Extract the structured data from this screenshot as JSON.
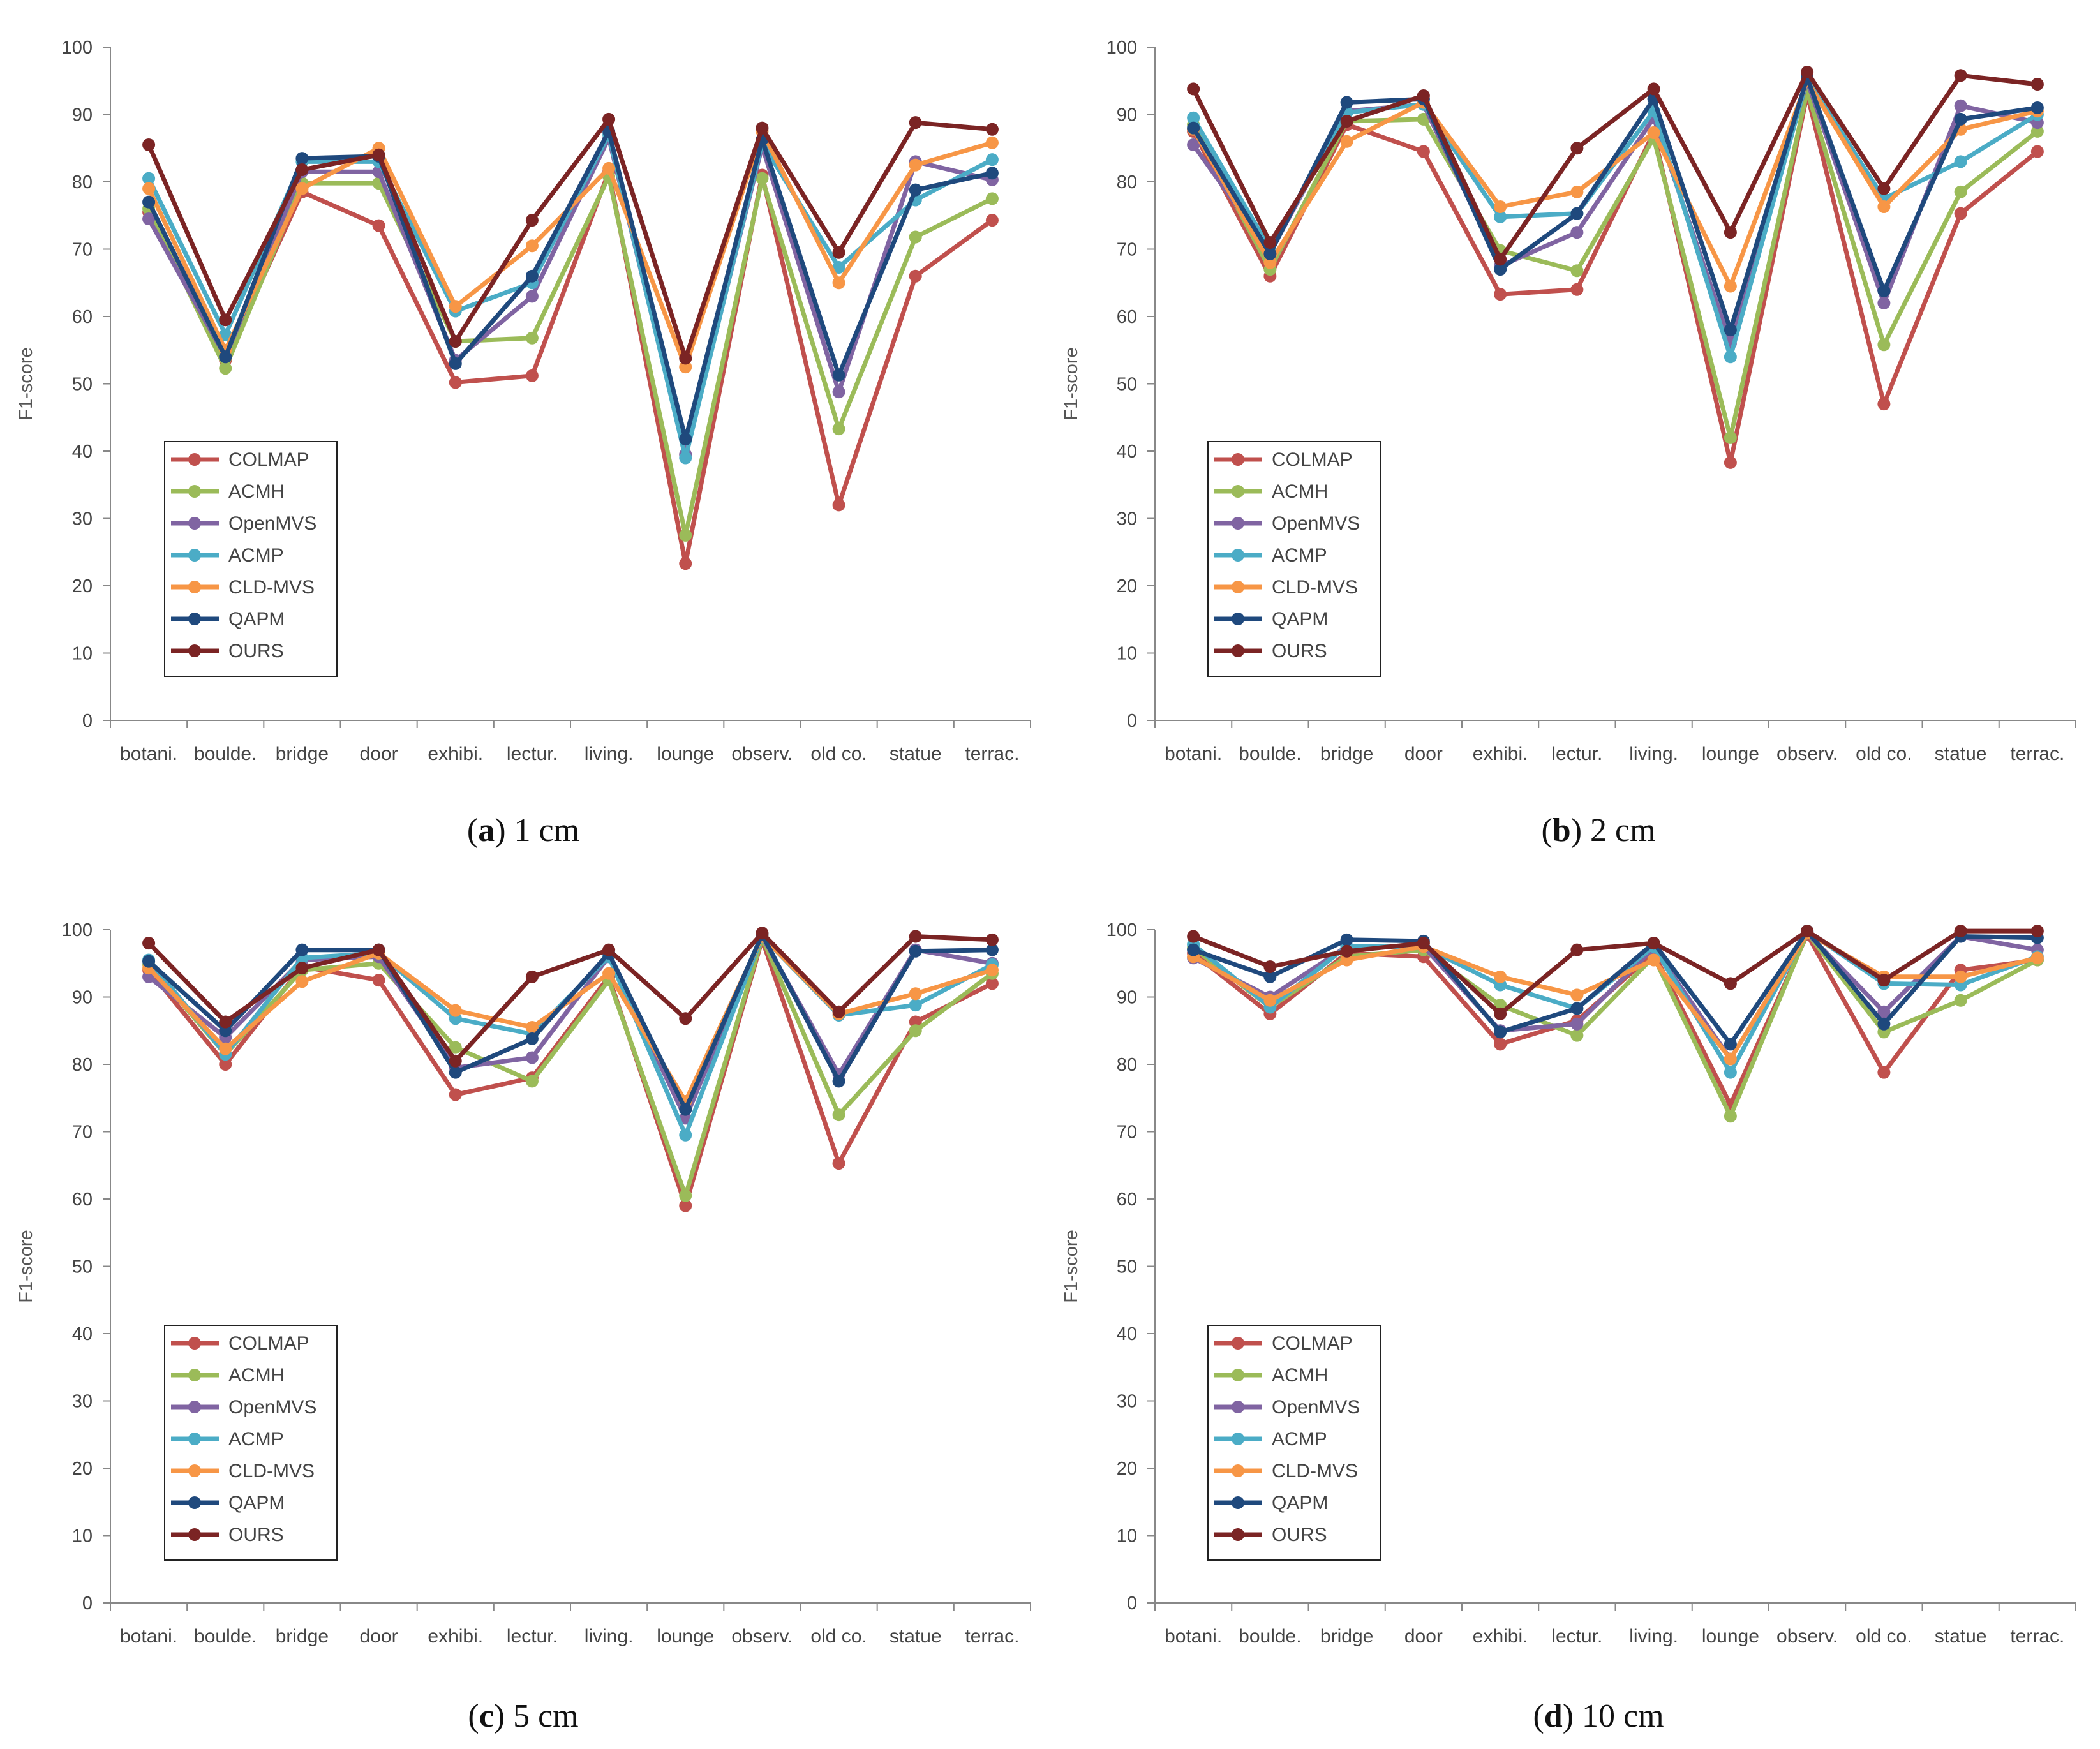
{
  "colors": {
    "COLMAP": "#C0504D",
    "ACMH": "#9BBB59",
    "OpenMVS": "#8064A2",
    "ACMP": "#4BACC6",
    "CLD-MVS": "#F79646",
    "QAPM": "#1F497D",
    "OURS": "#7B2424"
  },
  "chart_data": [
    {
      "type": "line",
      "label": "a",
      "caption": "1 cm",
      "ylabel": "F1-score",
      "ylim": [
        0,
        100
      ],
      "yticks": [
        0,
        10,
        20,
        30,
        40,
        50,
        60,
        70,
        80,
        90,
        100
      ],
      "categories": [
        "botani.",
        "boulde.",
        "bridge",
        "door",
        "exhibi.",
        "lectur.",
        "living.",
        "lounge",
        "observ.",
        "old co.",
        "statue",
        "terrac."
      ],
      "series": [
        {
          "name": "COLMAP",
          "values": [
            75.5,
            53.5,
            78.5,
            73.5,
            50.2,
            51.2,
            81.5,
            23.3,
            81.0,
            32.0,
            66.0,
            74.3
          ]
        },
        {
          "name": "ACMH",
          "values": [
            76.0,
            52.3,
            79.8,
            79.8,
            56.3,
            56.8,
            80.8,
            27.5,
            80.5,
            43.3,
            71.8,
            77.5
          ]
        },
        {
          "name": "OpenMVS",
          "values": [
            74.5,
            54.0,
            81.5,
            81.5,
            53.5,
            63.0,
            86.5,
            39.5,
            85.3,
            48.8,
            83.0,
            80.3
          ]
        },
        {
          "name": "ACMP",
          "values": [
            80.5,
            57.3,
            83.0,
            83.0,
            60.8,
            65.0,
            87.0,
            39.0,
            85.8,
            67.3,
            77.3,
            83.3
          ]
        },
        {
          "name": "CLD-MVS",
          "values": [
            79.0,
            55.0,
            79.0,
            85.0,
            61.5,
            70.5,
            82.0,
            52.5,
            87.5,
            65.0,
            82.5,
            85.8
          ]
        },
        {
          "name": "QAPM",
          "values": [
            77.0,
            54.0,
            83.5,
            83.8,
            53.0,
            66.0,
            87.5,
            41.8,
            86.3,
            51.3,
            78.8,
            81.3
          ]
        },
        {
          "name": "OURS",
          "values": [
            85.5,
            59.5,
            81.8,
            84.0,
            56.3,
            74.3,
            89.3,
            53.8,
            88.0,
            69.5,
            88.8,
            87.8
          ]
        }
      ]
    },
    {
      "type": "line",
      "label": "b",
      "caption": "2 cm",
      "ylabel": "F1-score",
      "ylim": [
        0,
        100
      ],
      "yticks": [
        0,
        10,
        20,
        30,
        40,
        50,
        60,
        70,
        80,
        90,
        100
      ],
      "categories": [
        "botani.",
        "boulde.",
        "bridge",
        "door",
        "exhibi.",
        "lectur.",
        "living.",
        "lounge",
        "observ.",
        "old co.",
        "statue",
        "terrac."
      ],
      "series": [
        {
          "name": "COLMAP",
          "values": [
            87.5,
            66.0,
            88.5,
            84.5,
            63.3,
            64.0,
            87.3,
            38.3,
            93.0,
            47.0,
            75.3,
            84.5
          ]
        },
        {
          "name": "ACMH",
          "values": [
            88.5,
            67.0,
            89.0,
            89.3,
            69.8,
            66.8,
            86.5,
            42.0,
            93.5,
            55.8,
            78.5,
            87.5
          ]
        },
        {
          "name": "OpenMVS",
          "values": [
            85.5,
            69.5,
            90.5,
            91.5,
            67.5,
            72.5,
            89.5,
            56.0,
            95.0,
            62.0,
            91.3,
            88.8
          ]
        },
        {
          "name": "ACMP",
          "values": [
            89.5,
            70.0,
            90.3,
            91.5,
            74.8,
            75.3,
            90.5,
            54.0,
            95.3,
            77.5,
            83.0,
            90.0
          ]
        },
        {
          "name": "CLD-MVS",
          "values": [
            87.8,
            68.0,
            86.0,
            91.8,
            76.3,
            78.5,
            87.3,
            64.5,
            95.0,
            76.3,
            87.8,
            90.5
          ]
        },
        {
          "name": "QAPM",
          "values": [
            88.0,
            69.3,
            91.8,
            92.3,
            67.0,
            75.3,
            92.3,
            58.0,
            95.5,
            63.8,
            89.3,
            91.0
          ]
        },
        {
          "name": "OURS",
          "values": [
            93.8,
            71.0,
            89.0,
            92.8,
            68.5,
            85.0,
            93.8,
            72.5,
            96.3,
            79.0,
            95.8,
            94.5
          ]
        }
      ]
    },
    {
      "type": "line",
      "label": "c",
      "caption": "5 cm",
      "ylabel": "F1-score",
      "ylim": [
        0,
        100
      ],
      "yticks": [
        0,
        10,
        20,
        30,
        40,
        50,
        60,
        70,
        80,
        90,
        100
      ],
      "categories": [
        "botani.",
        "boulde.",
        "bridge",
        "door",
        "exhibi.",
        "lectur.",
        "living.",
        "lounge",
        "observ.",
        "old co.",
        "statue",
        "terrac."
      ],
      "series": [
        {
          "name": "COLMAP",
          "values": [
            94.0,
            80.0,
            94.5,
            92.5,
            75.5,
            78.0,
            93.0,
            59.0,
            98.5,
            65.3,
            86.3,
            92.0
          ]
        },
        {
          "name": "ACMH",
          "values": [
            94.8,
            81.5,
            94.0,
            95.0,
            82.5,
            77.5,
            92.5,
            60.5,
            98.8,
            72.5,
            85.0,
            93.5
          ]
        },
        {
          "name": "OpenMVS",
          "values": [
            93.0,
            84.0,
            95.5,
            96.0,
            79.5,
            81.0,
            96.0,
            72.0,
            99.0,
            78.5,
            97.0,
            95.0
          ]
        },
        {
          "name": "ACMP",
          "values": [
            95.5,
            81.5,
            95.8,
            96.5,
            86.8,
            84.5,
            96.0,
            69.5,
            99.0,
            87.3,
            88.8,
            94.8
          ]
        },
        {
          "name": "CLD-MVS",
          "values": [
            94.3,
            82.3,
            92.3,
            96.5,
            88.0,
            85.5,
            93.5,
            74.5,
            99.0,
            87.5,
            90.5,
            94.0
          ]
        },
        {
          "name": "QAPM",
          "values": [
            95.3,
            85.0,
            97.0,
            97.0,
            78.8,
            83.8,
            96.5,
            73.3,
            99.3,
            77.5,
            96.8,
            97.0
          ]
        },
        {
          "name": "OURS",
          "values": [
            98.0,
            86.3,
            94.3,
            97.0,
            80.5,
            93.0,
            97.0,
            86.8,
            99.5,
            87.8,
            99.0,
            98.5
          ]
        }
      ]
    },
    {
      "type": "line",
      "label": "d",
      "caption": "10 cm",
      "ylabel": "F1-score",
      "ylim": [
        0,
        100
      ],
      "yticks": [
        0,
        10,
        20,
        30,
        40,
        50,
        60,
        70,
        80,
        90,
        100
      ],
      "categories": [
        "botani.",
        "boulde.",
        "bridge",
        "door",
        "exhibi.",
        "lectur.",
        "living.",
        "lounge",
        "observ.",
        "old co.",
        "statue",
        "terrac."
      ],
      "series": [
        {
          "name": "COLMAP",
          "values": [
            96.5,
            87.5,
            96.5,
            96.0,
            83.0,
            86.5,
            96.5,
            74.0,
            99.3,
            78.8,
            94.0,
            95.5
          ]
        },
        {
          "name": "ACMH",
          "values": [
            97.3,
            88.5,
            96.0,
            97.0,
            88.8,
            84.3,
            96.0,
            72.3,
            99.5,
            84.8,
            89.5,
            95.5
          ]
        },
        {
          "name": "OpenMVS",
          "values": [
            95.8,
            90.0,
            97.5,
            97.5,
            85.0,
            86.0,
            97.3,
            80.8,
            99.5,
            87.8,
            99.0,
            97.0
          ]
        },
        {
          "name": "ACMP",
          "values": [
            97.8,
            88.5,
            97.5,
            97.5,
            91.8,
            88.3,
            97.5,
            78.8,
            99.8,
            92.0,
            91.8,
            96.0
          ]
        },
        {
          "name": "CLD-MVS",
          "values": [
            96.0,
            89.5,
            95.5,
            97.5,
            93.0,
            90.3,
            95.5,
            80.8,
            99.5,
            93.0,
            93.0,
            95.8
          ]
        },
        {
          "name": "QAPM",
          "values": [
            97.0,
            93.0,
            98.5,
            98.3,
            84.8,
            88.3,
            98.0,
            83.0,
            99.8,
            86.0,
            99.0,
            98.8
          ]
        },
        {
          "name": "OURS",
          "values": [
            99.0,
            94.5,
            96.8,
            98.0,
            87.5,
            97.0,
            98.0,
            92.0,
            99.8,
            92.5,
            99.8,
            99.8
          ]
        }
      ]
    }
  ]
}
